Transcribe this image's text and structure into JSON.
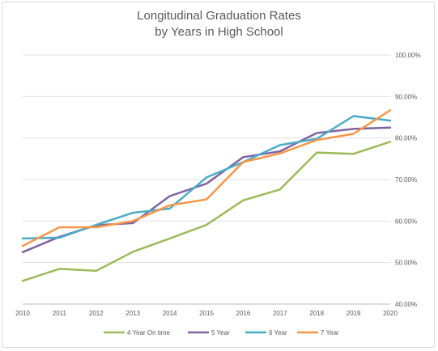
{
  "chart_data": {
    "type": "line",
    "title_lines": [
      "Longitudinal Graduation Rates",
      "by Years in High School"
    ],
    "xlabel": "",
    "ylabel": "",
    "x": [
      2010,
      2011,
      2012,
      2013,
      2014,
      2015,
      2016,
      2017,
      2018,
      2019,
      2020
    ],
    "x_tick_labels": [
      "2010",
      "2011",
      "2012",
      "2013",
      "2014",
      "2015",
      "2016",
      "2017",
      "2018",
      "2019",
      "2020"
    ],
    "ylim": [
      40,
      100
    ],
    "y_ticks": [
      40,
      50,
      60,
      70,
      80,
      90,
      100
    ],
    "y_tick_labels": [
      "40.00%",
      "50.00%",
      "60.00%",
      "70.00%",
      "80.00%",
      "90.00%",
      "100.00%"
    ],
    "y_axis_side": "right",
    "grid": true,
    "legend_position": "bottom",
    "series": [
      {
        "name": "4 Year On time",
        "color": "#9bbb59",
        "values": [
          45.6,
          48.5,
          48.0,
          52.6,
          55.8,
          59.1,
          65.0,
          67.6,
          76.5,
          76.2,
          79.1
        ]
      },
      {
        "name": "5 Year",
        "color": "#8064a2",
        "values": [
          52.5,
          56.2,
          59.0,
          59.5,
          66.0,
          69.0,
          75.4,
          76.8,
          81.2,
          82.2,
          82.5
        ]
      },
      {
        "name": "6 Year",
        "color": "#4bacc6",
        "values": [
          55.8,
          56.0,
          59.1,
          62.0,
          63.0,
          70.5,
          74.2,
          78.3,
          79.8,
          85.3,
          84.2
        ]
      },
      {
        "name": "7 Year",
        "color": "#f79646",
        "values": [
          54.0,
          58.5,
          58.5,
          60.0,
          63.8,
          65.2,
          74.2,
          76.3,
          79.5,
          81.0,
          86.7
        ]
      }
    ]
  }
}
